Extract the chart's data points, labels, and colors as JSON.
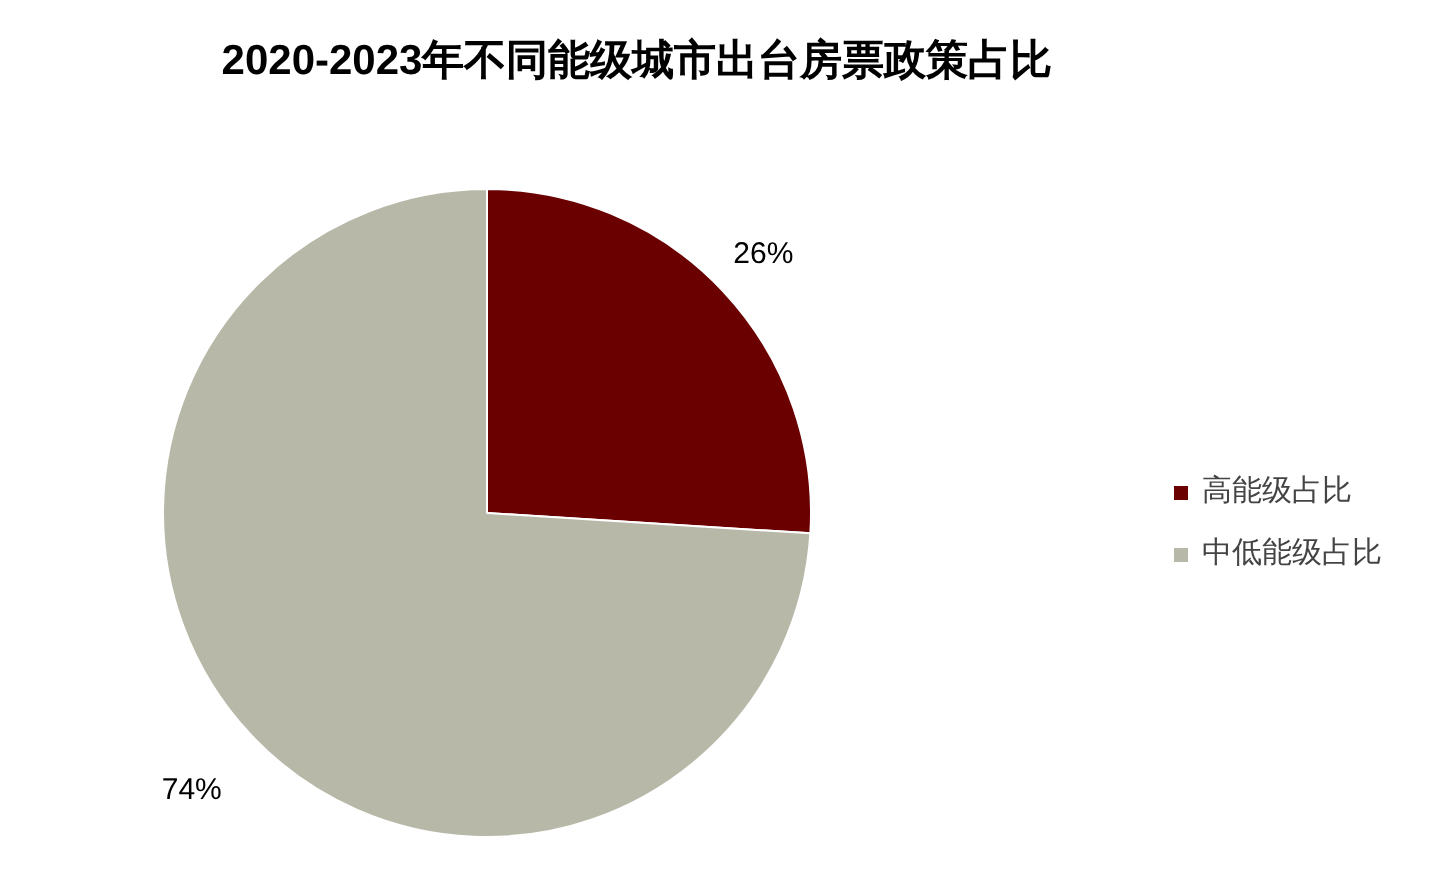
{
  "chart_data": {
    "type": "pie",
    "title": "2020-2023年不同能级城市出台房票政策占比",
    "categories": [
      "高能级占比",
      "中低能级占比"
    ],
    "values": [
      26,
      74
    ],
    "colors": [
      "#6b0000",
      "#b8b8a8"
    ],
    "value_labels": [
      "26%",
      "74%"
    ],
    "legend": "right"
  }
}
